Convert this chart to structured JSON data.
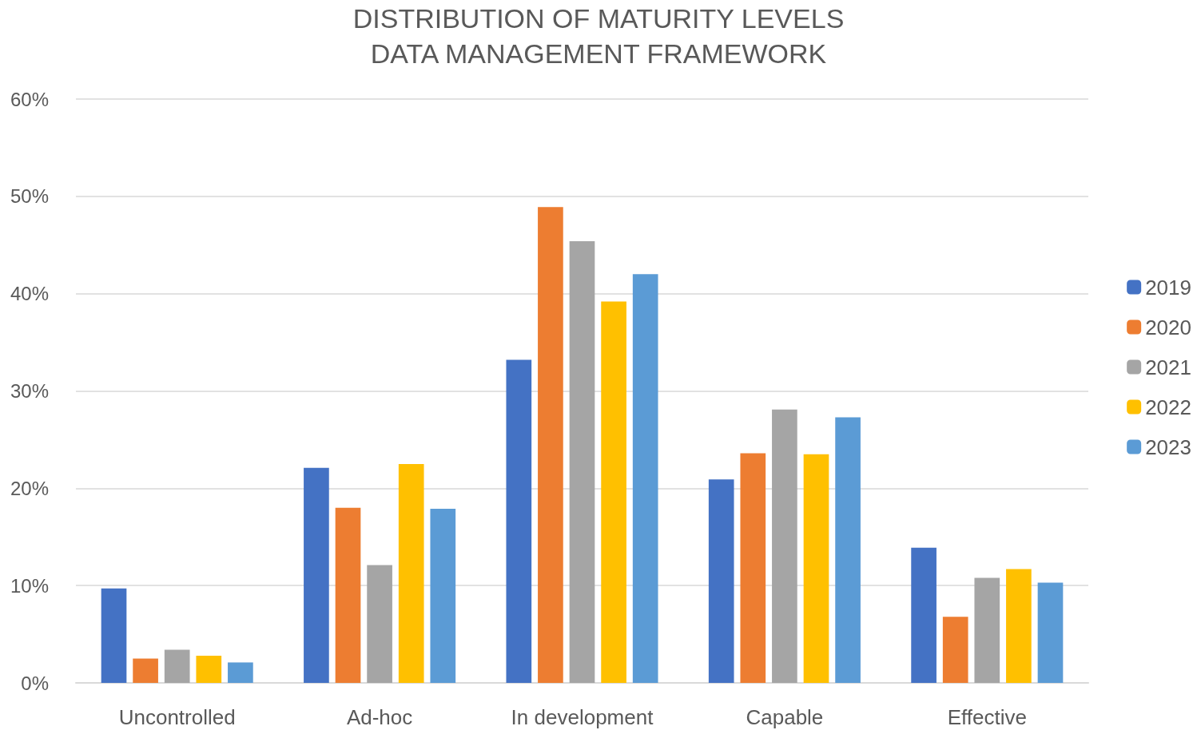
{
  "chart_data": {
    "type": "bar",
    "title": "DISTRIBUTION OF MATURITY LEVELS\nDATA MANAGEMENT FRAMEWORK",
    "categories": [
      "Uncontrolled",
      "Ad-hoc",
      "In development",
      "Capable",
      "Effective"
    ],
    "series": [
      {
        "name": "2019",
        "color": "#4472c4",
        "values": [
          9.7,
          22.1,
          33.2,
          20.9,
          13.9
        ]
      },
      {
        "name": "2020",
        "color": "#ed7d31",
        "values": [
          2.5,
          18.0,
          48.9,
          23.6,
          6.8
        ]
      },
      {
        "name": "2021",
        "color": "#a5a5a5",
        "values": [
          3.4,
          12.1,
          45.4,
          28.1,
          10.8
        ]
      },
      {
        "name": "2022",
        "color": "#ffc000",
        "values": [
          2.8,
          22.5,
          39.2,
          23.5,
          11.7
        ]
      },
      {
        "name": "2023",
        "color": "#5b9bd5",
        "values": [
          2.1,
          17.9,
          42.0,
          27.3,
          10.3
        ]
      }
    ],
    "ylim": [
      0,
      60
    ],
    "yticks": [
      {
        "value": 0,
        "label": "0%"
      },
      {
        "value": 10,
        "label": "10%"
      },
      {
        "value": 20,
        "label": "20%"
      },
      {
        "value": 30,
        "label": "30%"
      },
      {
        "value": 40,
        "label": "40%"
      },
      {
        "value": 50,
        "label": "50%"
      },
      {
        "value": 60,
        "label": "60%"
      }
    ],
    "grid": "y",
    "legend": "right"
  }
}
